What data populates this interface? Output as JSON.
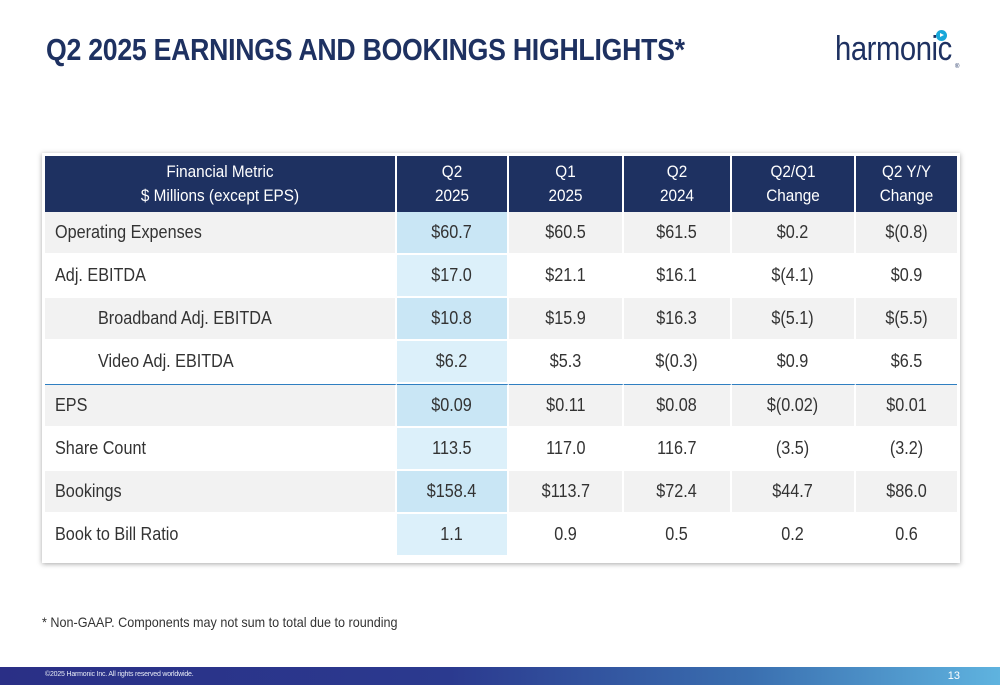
{
  "header": {
    "title": "Q2 2025 EARNINGS AND BOOKINGS HIGHLIGHTS*",
    "logo_text": "harmonic",
    "logo_reg": "®"
  },
  "table": {
    "columns": [
      {
        "line1": "Financial Metric",
        "line2": "$ Millions (except EPS)"
      },
      {
        "line1": "Q2",
        "line2": "2025"
      },
      {
        "line1": "Q1",
        "line2": "2025"
      },
      {
        "line1": "Q2",
        "line2": "2024"
      },
      {
        "line1": "Q2/Q1",
        "line2": "Change"
      },
      {
        "line1": "Q2 Y/Y",
        "line2": "Change"
      }
    ],
    "rows": [
      {
        "metric": "Operating Expenses",
        "q2_2025": "$60.7",
        "q1_2025": "$60.5",
        "q2_2024": "$61.5",
        "qoq": "$0.2",
        "yoy": "$(0.8)"
      },
      {
        "metric": "Adj. EBITDA",
        "q2_2025": "$17.0",
        "q1_2025": "$21.1",
        "q2_2024": "$16.1",
        "qoq": "$(4.1)",
        "yoy": "$0.9"
      },
      {
        "metric": "Broadband Adj. EBITDA",
        "q2_2025": "$10.8",
        "q1_2025": "$15.9",
        "q2_2024": "$16.3",
        "qoq": "$(5.1)",
        "yoy": "$(5.5)"
      },
      {
        "metric": "Video Adj. EBITDA",
        "q2_2025": "$6.2",
        "q1_2025": "$5.3",
        "q2_2024": "$(0.3)",
        "qoq": "$0.9",
        "yoy": "$6.5"
      },
      {
        "metric": "EPS",
        "q2_2025": "$0.09",
        "q1_2025": "$0.11",
        "q2_2024": "$0.08",
        "qoq": "$(0.02)",
        "yoy": "$0.01"
      },
      {
        "metric": "Share Count",
        "q2_2025": "113.5",
        "q1_2025": "117.0",
        "q2_2024": "116.7",
        "qoq": "(3.5)",
        "yoy": "(3.2)"
      },
      {
        "metric": "Bookings",
        "q2_2025": "$158.4",
        "q1_2025": "$113.7",
        "q2_2024": "$72.4",
        "qoq": "$44.7",
        "yoy": "$86.0"
      },
      {
        "metric": "Book to Bill Ratio",
        "q2_2025": "1.1",
        "q1_2025": "0.9",
        "q2_2024": "0.5",
        "qoq": "0.2",
        "yoy": "0.6"
      }
    ]
  },
  "footnote": "* Non-GAAP. Components may not sum to total due to rounding",
  "footer": {
    "copyright": "©2025 Harmonic Inc. All rights reserved worldwide.",
    "page_number": "13"
  },
  "colors": {
    "title": "#1e3161",
    "header_bg": "#1e3161",
    "highlight_column": "#c9e6f5",
    "row_shade": "#f2f2f2",
    "logo_accent": "#18a7d9"
  }
}
